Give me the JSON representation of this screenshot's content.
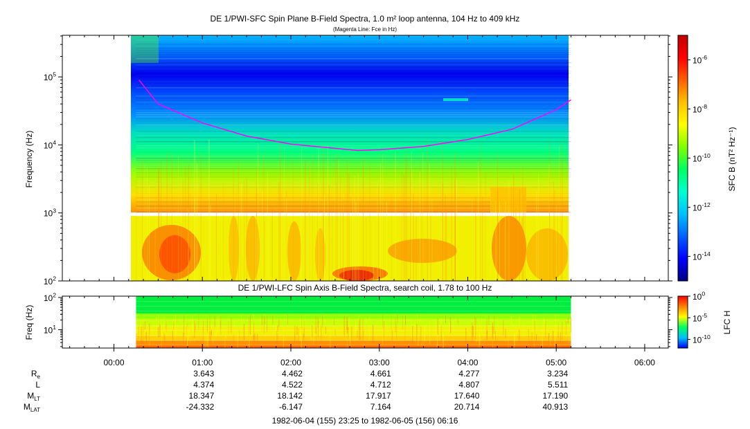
{
  "chart_data": [
    {
      "type": "heatmap",
      "title": "DE 1/PWI-SFC  Spin Plane B-Field Spectra, 1.0 m² loop antenna, 104 Hz to 409 kHz",
      "subtitle": "(Magenta Line: Fce in Hz)",
      "ylabel": "Frequency (Hz)",
      "y_scale": "log",
      "ylim": [
        100,
        409000
      ],
      "y_ticks": [
        "10^2",
        "10^3",
        "10^4",
        "10^5"
      ],
      "data_coverage_ut": [
        "00:15",
        "05:10"
      ],
      "data_gap_hz": [
        900,
        1000
      ],
      "colorbar": {
        "label": "SFC B (nT² Hz⁻¹)",
        "scale": "log",
        "range": [
          1e-15,
          1e-05
        ],
        "ticks": [
          "10^-6",
          "10^-8",
          "10^-10",
          "10^-12",
          "10^-14"
        ],
        "colors": [
          "#000080",
          "#0000ff",
          "#0060ff",
          "#00c0ff",
          "#00ffd0",
          "#00ff60",
          "#80ff00",
          "#ffff00",
          "#ffc000",
          "#ff6000",
          "#ff0000",
          "#c00000"
        ]
      },
      "series": [
        {
          "name": "Fce",
          "color": "#ff00ff",
          "x": [
            "00:17",
            "00:30",
            "01:00",
            "01:30",
            "02:00",
            "02:30",
            "02:45",
            "03:00",
            "03:30",
            "04:00",
            "04:30",
            "05:00",
            "05:10"
          ],
          "y": [
            90000,
            40000,
            21000,
            13500,
            10300,
            8900,
            8300,
            8500,
            9500,
            12000,
            17000,
            33000,
            46000
          ]
        }
      ]
    },
    {
      "type": "heatmap",
      "title": "DE 1/PWI-LFC  Spin Axis B-Field Spectra, search coil, 1.78 to 100 Hz",
      "ylabel": "Freq (Hz)",
      "y_scale": "log",
      "ylim": [
        2.7,
        110
      ],
      "y_ticks": [
        "10^1",
        "10^2"
      ],
      "data_coverage_ut": [
        "00:15",
        "05:10"
      ],
      "colorbar": {
        "label": "LFC H",
        "scale": "log",
        "range": [
          1e-12,
          1
        ],
        "ticks": [
          "10^0",
          "10^-5",
          "10^-10"
        ],
        "colors": [
          "#0000ff",
          "#00c0ff",
          "#00ff60",
          "#ffff00",
          "#ff8000",
          "#ff0000"
        ]
      },
      "bands": [
        {
          "from_hz": 2.7,
          "to_hz": 3.2,
          "color": "#ff6000"
        },
        {
          "from_hz": 3.2,
          "to_hz": 4.6,
          "color": "#ff9000"
        },
        {
          "from_hz": 4.6,
          "to_hz": 6.5,
          "color": "#ffd000"
        },
        {
          "from_hz": 6.5,
          "to_hz": 13,
          "color": "#f0f000"
        },
        {
          "from_hz": 13,
          "to_hz": 22,
          "color": "#c8ff00"
        },
        {
          "from_hz": 22,
          "to_hz": 32,
          "color": "#90ff00"
        },
        {
          "from_hz": 32,
          "to_hz": 110,
          "color": "#00ee40"
        }
      ]
    }
  ],
  "time_axis": {
    "start_ut": "23:25",
    "end_ut": "06:16",
    "tick_labels": [
      "00:00",
      "01:00",
      "02:00",
      "03:00",
      "04:00",
      "05:00",
      "06:00"
    ]
  },
  "ephemeris": {
    "rows": [
      {
        "label": "R",
        "sub": "e",
        "values": [
          "3.643",
          "4.462",
          "4.661",
          "4.277",
          "3.234"
        ]
      },
      {
        "label": "L",
        "sub": "",
        "values": [
          "4.374",
          "4.522",
          "4.712",
          "4.807",
          "5.511"
        ]
      },
      {
        "label": "M",
        "sub": "LT",
        "values": [
          "18.347",
          "18.142",
          "17.917",
          "17.640",
          "17.190"
        ]
      },
      {
        "label": "M",
        "sub": "LAT",
        "values": [
          "-24.332",
          "-6.147",
          "7.164",
          "20.714",
          "40.913"
        ]
      }
    ],
    "times_ut": [
      "01:00",
      "02:00",
      "03:00",
      "04:00",
      "05:00"
    ]
  },
  "footer": "1982-06-04 (155) 23:25 to 1982-06-05 (156) 06:16"
}
